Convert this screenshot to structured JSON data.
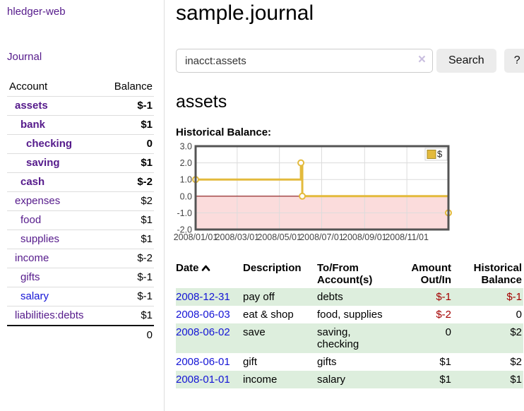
{
  "app": {
    "title": "hledger-web"
  },
  "sidebar": {
    "nav": {
      "journal": "Journal"
    },
    "accounts": {
      "headers": {
        "account": "Account",
        "balance": "Balance"
      },
      "rows": [
        {
          "name": "assets",
          "balance": "$-1"
        },
        {
          "name": "bank",
          "balance": "$1"
        },
        {
          "name": "checking",
          "balance": "0"
        },
        {
          "name": "saving",
          "balance": "$1"
        },
        {
          "name": "cash",
          "balance": "$-2"
        },
        {
          "name": "expenses",
          "balance": "$2"
        },
        {
          "name": "food",
          "balance": "$1"
        },
        {
          "name": "supplies",
          "balance": "$1"
        },
        {
          "name": "income",
          "balance": "$-2"
        },
        {
          "name": "gifts",
          "balance": "$-1"
        },
        {
          "name": "salary",
          "balance": "$-1"
        },
        {
          "name": "liabilities:debts",
          "balance": "$1"
        }
      ],
      "total": "0"
    }
  },
  "header": {
    "title": "sample.journal"
  },
  "search": {
    "value": "inacct:assets",
    "clear_icon": "×",
    "button": "Search",
    "help_button": "?"
  },
  "register": {
    "heading": "assets",
    "chart_label": "Historical Balance:",
    "table": {
      "headers": {
        "date": "Date",
        "description": "Description",
        "tofrom": "To/From Account(s)",
        "amount": "Amount Out/In",
        "balance": "Historical Balance"
      },
      "rows": [
        {
          "date": "2008-12-31",
          "description": "pay off",
          "tofrom": "debts",
          "amount": "$-1",
          "balance": "$-1"
        },
        {
          "date": "2008-06-03",
          "description": "eat & shop",
          "tofrom": "food, supplies",
          "amount": "$-2",
          "balance": "0"
        },
        {
          "date": "2008-06-02",
          "description": "save",
          "tofrom": "saving, checking",
          "amount": "0",
          "balance": "$2"
        },
        {
          "date": "2008-06-01",
          "description": "gift",
          "tofrom": "gifts",
          "amount": "$1",
          "balance": "$2"
        },
        {
          "date": "2008-01-01",
          "description": "income",
          "tofrom": "salary",
          "amount": "$1",
          "balance": "$1"
        }
      ]
    }
  },
  "chart_data": {
    "type": "line",
    "step": true,
    "title": "Historical Balance",
    "series": [
      {
        "name": "$",
        "color": "#e3ba3c",
        "points": [
          {
            "date": "2008-01-01",
            "value": 1
          },
          {
            "date": "2008-06-01",
            "value": 2
          },
          {
            "date": "2008-06-03",
            "value": 0
          },
          {
            "date": "2008-12-31",
            "value": -1
          }
        ]
      }
    ],
    "x_ticks": [
      {
        "label": "2008/01/01",
        "date": "2008-01-01"
      },
      {
        "label": "2008/03/01",
        "date": "2008-03-01"
      },
      {
        "label": "2008/05/01",
        "date": "2008-05-01"
      },
      {
        "label": "2008/07/01",
        "date": "2008-07-01"
      },
      {
        "label": "2008/09/01",
        "date": "2008-09-01"
      },
      {
        "label": "2008/11/01",
        "date": "2008-11-01"
      }
    ],
    "y_ticks": [
      3.0,
      2.0,
      1.0,
      0.0,
      -1.0,
      -2.0
    ],
    "xlim": [
      "2008-01-01",
      "2008-12-31"
    ],
    "ylim": [
      -2,
      3
    ],
    "grid": true,
    "legend": {
      "label": "$",
      "position": "top-right"
    },
    "colors": {
      "line": "#e3ba3c",
      "marker_fill": "#ffffff",
      "border": "#545454",
      "grid": "#dcdcdc",
      "negative_fill": "#fbdcdc",
      "zero_line": "#8c1a1a",
      "tick_text": "#444444"
    }
  }
}
